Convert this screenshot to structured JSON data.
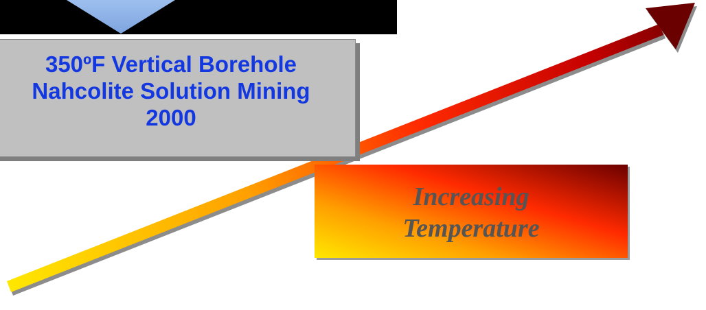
{
  "info_box": {
    "line1": "350ºF Vertical Borehole",
    "line2": "Nahcolite Solution Mining",
    "line3": "2000"
  },
  "temperature_label": {
    "line1": "Increasing",
    "line2": "Temperature"
  },
  "colors": {
    "box_text": "#1438e0",
    "box_fill": "#c0c0c0",
    "arrow_start": "#ffe800",
    "arrow_mid": "#ff2a00",
    "arrow_end": "#6b0000",
    "pointer_fill": "#8cb1e8"
  }
}
